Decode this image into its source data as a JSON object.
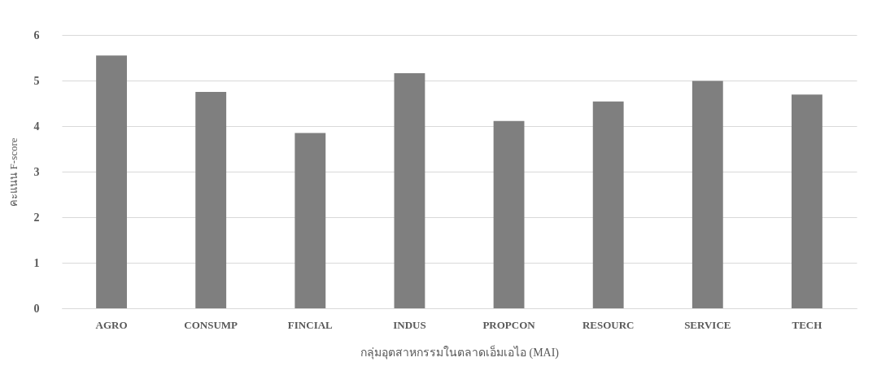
{
  "chart_data": {
    "type": "bar",
    "xlabel": "กลุ่มอุตสาหกรรมในตลาดเอ็มเอไอ (MAI)",
    "ylabel": "คะแนน F-score",
    "categories": [
      "AGRO",
      "CONSUMP",
      "FINCIAL",
      "INDUS",
      "PROPCON",
      "RESOURC",
      "SERVICE",
      "TECH"
    ],
    "values": [
      5.55,
      4.75,
      3.85,
      5.16,
      4.11,
      4.54,
      4.99,
      4.69
    ],
    "color": "#7f7f7f",
    "ylim": [
      0,
      6
    ],
    "yticks": [
      0,
      1,
      2,
      3,
      4,
      5,
      6
    ],
    "grid": "y"
  }
}
